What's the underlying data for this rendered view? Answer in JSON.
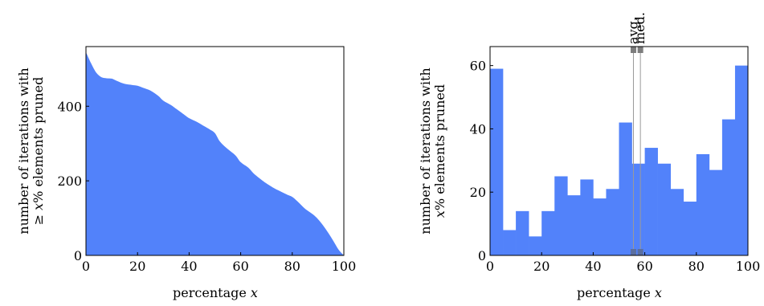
{
  "chart_data": [
    {
      "type": "area",
      "xlabel": "percentage",
      "xlabel_var": "x",
      "ylabel_line1": "number of iterations with",
      "ylabel_line2_prefix": "≥ ",
      "ylabel_line2_var": "x",
      "ylabel_line2_suffix": "% elements pruned",
      "xlim": [
        0,
        100
      ],
      "ylim": [
        0,
        560
      ],
      "xticks": [
        0,
        20,
        40,
        60,
        80,
        100
      ],
      "yticks": [
        0,
        200,
        400
      ],
      "color": "#5282fa",
      "x": [
        0,
        2,
        4,
        6,
        8,
        10,
        12,
        15,
        18,
        20,
        22,
        25,
        28,
        30,
        33,
        35,
        38,
        40,
        43,
        45,
        48,
        50,
        52,
        55,
        58,
        60,
        63,
        65,
        68,
        70,
        73,
        75,
        78,
        80,
        82,
        85,
        88,
        90,
        92,
        94,
        96,
        98,
        100
      ],
      "y": [
        545,
        515,
        490,
        478,
        475,
        474,
        468,
        460,
        457,
        455,
        450,
        442,
        428,
        415,
        403,
        393,
        378,
        368,
        358,
        350,
        338,
        328,
        305,
        285,
        268,
        250,
        235,
        220,
        203,
        193,
        180,
        173,
        163,
        157,
        145,
        125,
        110,
        97,
        80,
        60,
        38,
        15,
        0
      ]
    },
    {
      "type": "bar",
      "xlabel": "percentage",
      "xlabel_var": "x",
      "ylabel_line1": "number of iterations with",
      "ylabel_line2_var": "x",
      "ylabel_line2_suffix": "% elements pruned",
      "xlim": [
        0,
        100
      ],
      "ylim": [
        0,
        66
      ],
      "xticks": [
        0,
        20,
        40,
        60,
        80,
        100
      ],
      "yticks": [
        0,
        20,
        40,
        60
      ],
      "color": "#5282fa",
      "bin_width": 5,
      "bin_starts": [
        0,
        5,
        10,
        15,
        20,
        25,
        30,
        35,
        40,
        45,
        50,
        55,
        60,
        65,
        70,
        75,
        80,
        85,
        90,
        95
      ],
      "values": [
        59,
        8,
        14,
        6,
        14,
        25,
        19,
        24,
        18,
        21,
        42,
        29,
        34,
        29,
        21,
        17,
        32,
        27,
        43,
        60
      ],
      "markers": [
        {
          "label": "avg.",
          "x": 55.6
        },
        {
          "label": "med.",
          "x": 58.3
        }
      ]
    }
  ]
}
